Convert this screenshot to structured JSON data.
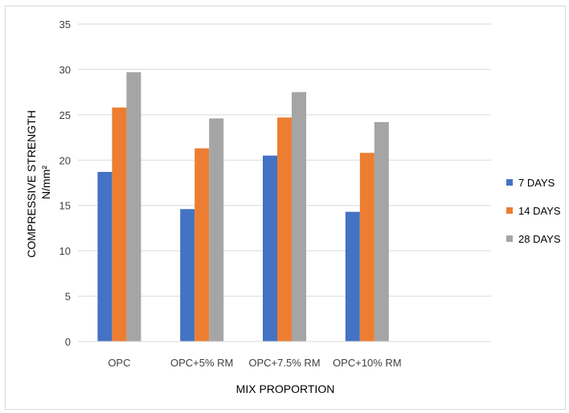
{
  "chart_data": {
    "type": "bar",
    "title": "",
    "xlabel": "MIX PROPORTION",
    "ylabel_line1": "COMPRESSIVE STRENGTH",
    "ylabel_line2": "N/mm²",
    "categories": [
      "OPC",
      "OPC+5% RM",
      "OPC+7.5% RM",
      "OPC+10% RM",
      ""
    ],
    "series": [
      {
        "name": "7 DAYS",
        "color": "#4472c4",
        "values": [
          18.7,
          14.6,
          20.5,
          14.3,
          null
        ]
      },
      {
        "name": "14 DAYS",
        "color": "#ed7d31",
        "values": [
          25.8,
          21.3,
          24.7,
          20.8,
          null
        ]
      },
      {
        "name": "28 DAYS",
        "color": "#a5a5a5",
        "values": [
          29.7,
          24.6,
          27.5,
          24.2,
          null
        ]
      }
    ],
    "ylim": [
      0,
      35
    ],
    "yticks": [
      0,
      5,
      10,
      15,
      20,
      25,
      30,
      35
    ],
    "grid": true,
    "legend_position": "right"
  }
}
